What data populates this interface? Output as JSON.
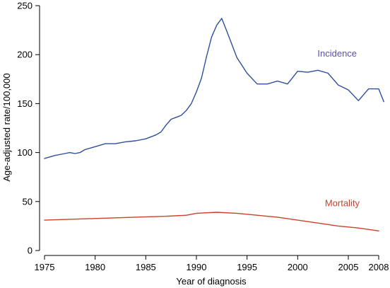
{
  "chart_data": {
    "type": "line",
    "title": "",
    "xlabel": "Year of diagnosis",
    "ylabel": "Age-adjusted rate/100,000",
    "xlim": [
      1975,
      2008
    ],
    "ylim": [
      0,
      250
    ],
    "x_ticks": [
      1975,
      1980,
      1985,
      1990,
      1995,
      2000,
      2005,
      2008
    ],
    "y_ticks": [
      0,
      50,
      100,
      150,
      200,
      250
    ],
    "grid": false,
    "legend": "none",
    "series": [
      {
        "name": "Incidence",
        "color": "#2e4f9a",
        "label_color": "#5a4fb0",
        "x": [
          1975,
          1976,
          1977,
          1977.5,
          1978,
          1978.5,
          1979,
          1980,
          1981,
          1982,
          1983,
          1984,
          1985,
          1986,
          1986.5,
          1987,
          1987.5,
          1988,
          1988.5,
          1989,
          1989.5,
          1990,
          1990.5,
          1991,
          1991.5,
          1992,
          1992.5,
          1993,
          1994,
          1995,
          1996,
          1997,
          1998,
          1999,
          2000,
          2001,
          2002,
          2003,
          2004,
          2005,
          2006,
          2007,
          2008,
          2008.5
        ],
        "values": [
          94,
          97,
          99,
          100,
          99,
          100,
          103,
          106,
          109,
          109,
          111,
          112,
          114,
          118,
          121,
          128,
          134,
          136,
          138,
          143,
          150,
          162,
          176,
          198,
          218,
          230,
          237,
          224,
          197,
          181,
          170,
          170,
          173,
          170,
          183,
          182,
          184,
          181,
          169,
          164,
          153,
          165,
          165,
          152
        ]
      },
      {
        "name": "Mortality",
        "color": "#c8432a",
        "label_color": "#c8432a",
        "x": [
          1975,
          1978,
          1981,
          1984,
          1987,
          1989,
          1990,
          1992,
          1994,
          1996,
          1998,
          2000,
          2002,
          2004,
          2006,
          2008
        ],
        "values": [
          31,
          32,
          33,
          34,
          35,
          36,
          38,
          39,
          38,
          36,
          34,
          31,
          28,
          25,
          23,
          20
        ]
      }
    ],
    "annotations": [
      {
        "text": "Incidence",
        "x": 2003.9,
        "y": 198,
        "color": "#5a4fb0"
      },
      {
        "text": "Mortality",
        "x": 2004.4,
        "y": 45,
        "color": "#c8432a"
      }
    ]
  }
}
